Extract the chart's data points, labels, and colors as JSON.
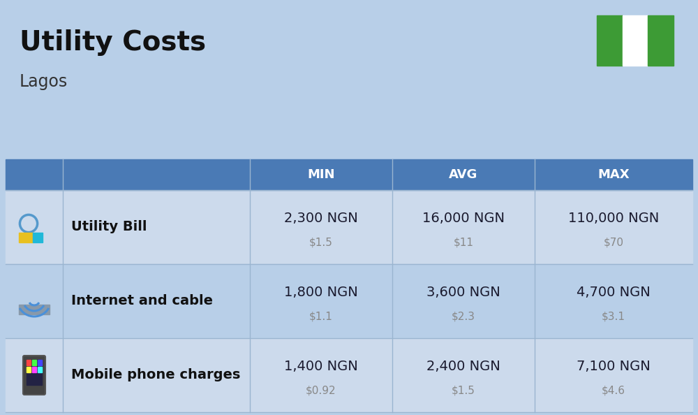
{
  "title": "Utility Costs",
  "subtitle": "Lagos",
  "bg_color": "#b8cfe8",
  "header_bg_color": "#4a7ab5",
  "header_text_color": "#ffffff",
  "row_bg_color_1": "#ccdaec",
  "row_bg_color_2": "#b8cfe8",
  "separator_color": "#9ab5d0",
  "header_labels": [
    "MIN",
    "AVG",
    "MAX"
  ],
  "rows": [
    {
      "label": "Utility Bill",
      "min_ngn": "2,300 NGN",
      "min_usd": "$1.5",
      "avg_ngn": "16,000 NGN",
      "avg_usd": "$11",
      "max_ngn": "110,000 NGN",
      "max_usd": "$70"
    },
    {
      "label": "Internet and cable",
      "min_ngn": "1,800 NGN",
      "min_usd": "$1.1",
      "avg_ngn": "3,600 NGN",
      "avg_usd": "$2.3",
      "max_ngn": "4,700 NGN",
      "max_usd": "$3.1"
    },
    {
      "label": "Mobile phone charges",
      "min_ngn": "1,400 NGN",
      "min_usd": "$0.92",
      "avg_ngn": "2,400 NGN",
      "avg_usd": "$1.5",
      "max_ngn": "7,100 NGN",
      "max_usd": "$4.6"
    }
  ],
  "flag_green": "#3d9b35",
  "flag_white": "#ffffff",
  "ngn_color": "#1a1a2e",
  "usd_color": "#888888",
  "title_fontsize": 28,
  "subtitle_fontsize": 17,
  "header_fontsize": 13,
  "label_fontsize": 14,
  "ngn_fontsize": 14,
  "usd_fontsize": 11
}
